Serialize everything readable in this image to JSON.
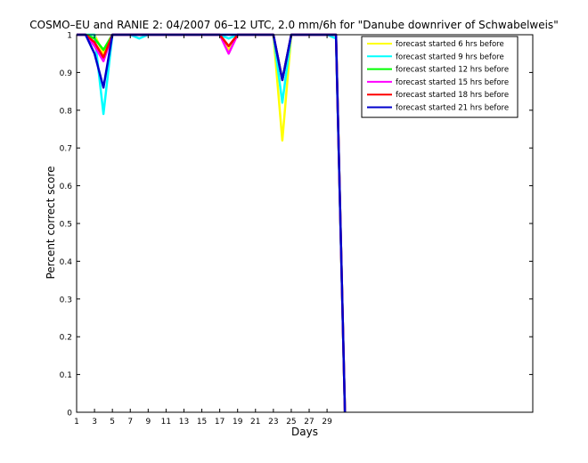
{
  "chart_data": {
    "type": "line",
    "title": "COSMO–EU and RANIE 2: 04/2007 06–12 UTC, 2.0 mm/6h for \"Danube downriver of Schwabelweis\"",
    "xlabel": "Days",
    "ylabel": "Percent correct score",
    "xlim": [
      1,
      52
    ],
    "ylim": [
      0,
      1
    ],
    "xticks": [
      1,
      3,
      5,
      7,
      9,
      11,
      13,
      15,
      17,
      19,
      21,
      23,
      25,
      27,
      29
    ],
    "yticks": [
      0,
      0.1,
      0.2,
      0.3,
      0.4,
      0.5,
      0.6,
      0.7,
      0.8,
      0.9,
      1
    ],
    "ytick_labels": [
      "0",
      "0.1",
      "0.2",
      "0.3",
      "0.4",
      "0.5",
      "0.6",
      "0.7",
      "0.8",
      "0.9",
      "1"
    ],
    "grid": false,
    "legend_position": "top-right",
    "series": [
      {
        "name": "forecast started 6 hrs before",
        "color": "#ffff00",
        "x": [
          1,
          2,
          3,
          4,
          5,
          6,
          7,
          8,
          9,
          10,
          11,
          12,
          13,
          14,
          15,
          16,
          17,
          18,
          19,
          20,
          21,
          22,
          23,
          24,
          25,
          26,
          27,
          28,
          29,
          30,
          31
        ],
        "y": [
          1,
          1,
          1,
          0.95,
          1,
          1,
          1,
          1,
          1,
          1,
          1,
          1,
          1,
          1,
          1,
          1,
          1,
          0.96,
          1,
          1,
          1,
          1,
          1,
          0.72,
          1,
          1,
          1,
          1,
          1,
          1,
          0
        ]
      },
      {
        "name": "forecast started 9 hrs before",
        "color": "#00ffff",
        "x": [
          1,
          2,
          3,
          4,
          5,
          6,
          7,
          8,
          9,
          10,
          11,
          12,
          13,
          14,
          15,
          16,
          17,
          18,
          19,
          20,
          21,
          22,
          23,
          24,
          25,
          26,
          27,
          28,
          29,
          30,
          31
        ],
        "y": [
          1,
          1,
          1,
          0.79,
          1,
          1,
          1,
          0.99,
          1,
          1,
          1,
          1,
          1,
          1,
          1,
          1,
          1,
          0.99,
          1,
          1,
          1,
          1,
          1,
          0.82,
          1,
          1,
          1,
          1,
          1,
          0.99,
          0
        ]
      },
      {
        "name": "forecast started 12 hrs before",
        "color": "#00ff00",
        "x": [
          1,
          2,
          3,
          4,
          5,
          6,
          7,
          8,
          9,
          10,
          11,
          12,
          13,
          14,
          15,
          16,
          17,
          18,
          19,
          20,
          21,
          22,
          23,
          24,
          25,
          26,
          27,
          28,
          29,
          30,
          31
        ],
        "y": [
          1,
          1,
          0.99,
          0.96,
          1,
          1,
          1,
          1,
          1,
          1,
          1,
          1,
          1,
          1,
          1,
          1,
          1,
          0.97,
          1,
          1,
          1,
          1,
          1,
          0.88,
          1,
          1,
          1,
          1,
          1,
          1,
          0
        ]
      },
      {
        "name": "forecast started 15 hrs before",
        "color": "#ff00ff",
        "x": [
          1,
          2,
          3,
          4,
          5,
          6,
          7,
          8,
          9,
          10,
          11,
          12,
          13,
          14,
          15,
          16,
          17,
          18,
          19,
          20,
          21,
          22,
          23,
          24,
          25,
          26,
          27,
          28,
          29,
          30,
          31
        ],
        "y": [
          1,
          1,
          0.97,
          0.93,
          1,
          1,
          1,
          1,
          1,
          1,
          1,
          1,
          1,
          1,
          1,
          1,
          1,
          0.95,
          1,
          1,
          1,
          1,
          1,
          0.88,
          1,
          1,
          1,
          1,
          1,
          1,
          0
        ]
      },
      {
        "name": "forecast started 18 hrs before",
        "color": "#ff0000",
        "x": [
          1,
          2,
          3,
          4,
          5,
          6,
          7,
          8,
          9,
          10,
          11,
          12,
          13,
          14,
          15,
          16,
          17,
          18,
          19,
          20,
          21,
          22,
          23,
          24,
          25,
          26,
          27,
          28,
          29,
          30,
          31
        ],
        "y": [
          1,
          1,
          0.98,
          0.94,
          1,
          1,
          1,
          1,
          1,
          1,
          1,
          1,
          1,
          1,
          1,
          1,
          1,
          0.97,
          1,
          1,
          1,
          1,
          1,
          0.88,
          1,
          1,
          1,
          1,
          1,
          1,
          0
        ]
      },
      {
        "name": "forecast started 21 hrs before",
        "color": "#0000cc",
        "x": [
          1,
          2,
          3,
          4,
          5,
          6,
          7,
          8,
          9,
          10,
          11,
          12,
          13,
          14,
          15,
          16,
          17,
          18,
          19,
          20,
          21,
          22,
          23,
          24,
          25,
          26,
          27,
          28,
          29,
          30,
          31
        ],
        "y": [
          1,
          1,
          0.95,
          0.86,
          1,
          1,
          1,
          1,
          1,
          1,
          1,
          1,
          1,
          1,
          1,
          1,
          1,
          1,
          1,
          1,
          1,
          1,
          1,
          0.88,
          1,
          1,
          1,
          1,
          1,
          1,
          0
        ]
      }
    ]
  }
}
